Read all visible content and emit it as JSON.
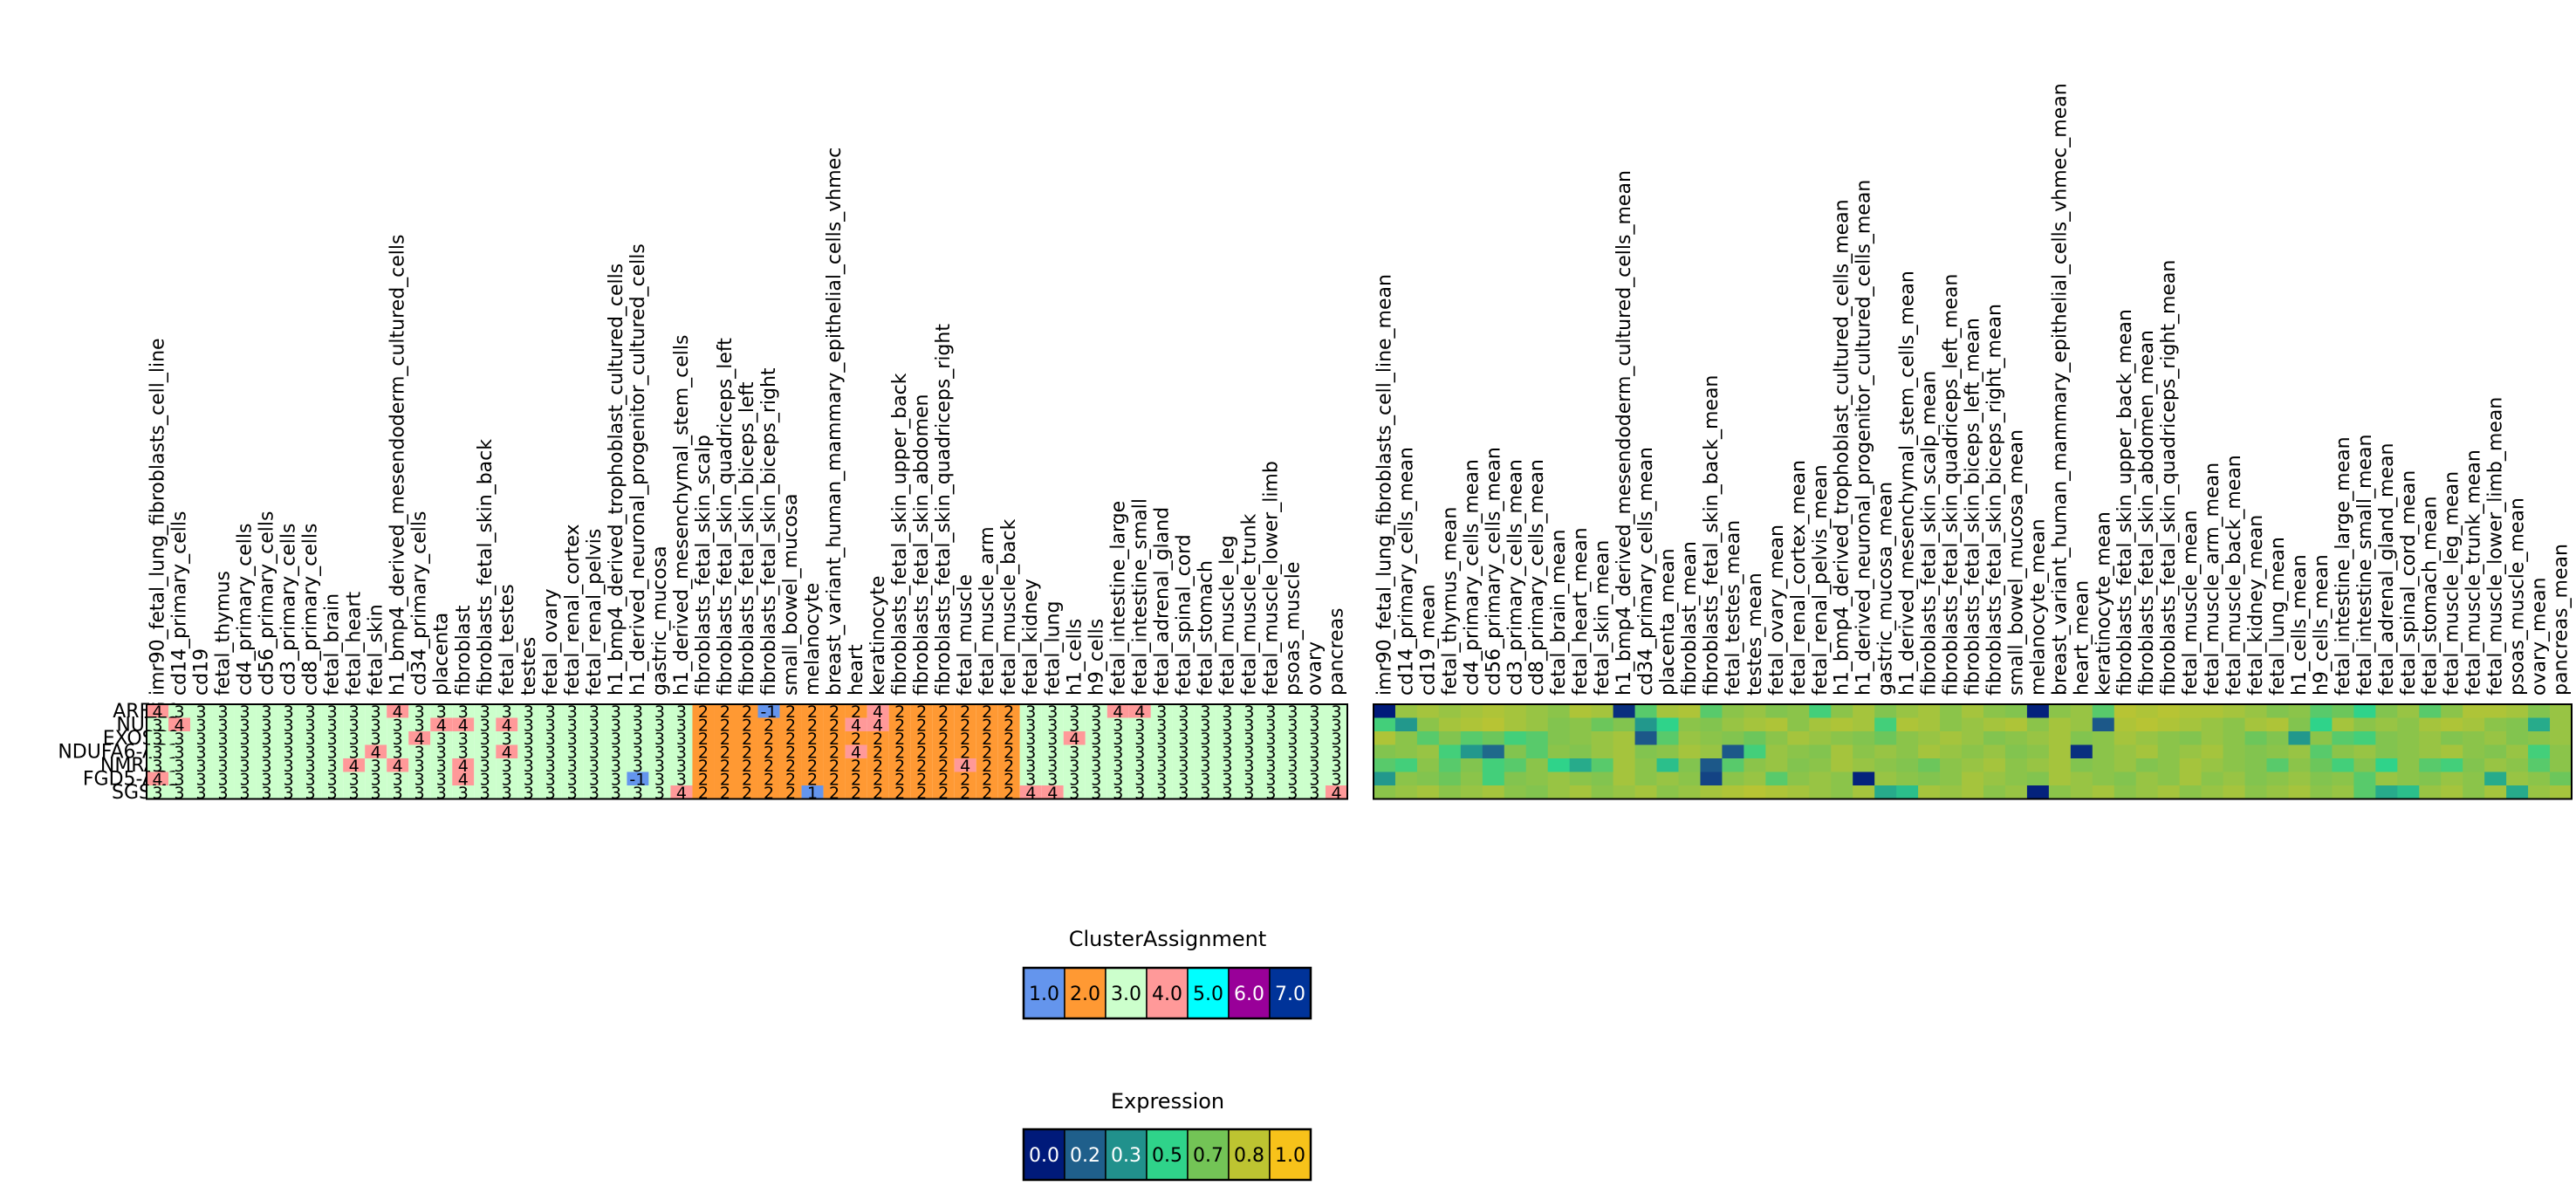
{
  "chart_data": [
    {
      "type": "heatmap",
      "name": "cluster-assignment-heatmap",
      "rows": [
        "ARFIP1",
        "NUTF2",
        "EXOSC9",
        "NDUFA6-AS1",
        "NMRAL1",
        "FGD5-AS1",
        "SGSM3"
      ],
      "columns": [
        "imr90_fetal_lung_fibroblasts_cell_line",
        "cd14_primary_cells",
        "cd19",
        "fetal_thymus",
        "cd4_primary_cells",
        "cd56_primary_cells",
        "cd3_primary_cells",
        "cd8_primary_cells",
        "fetal_brain",
        "fetal_heart",
        "fetal_skin",
        "h1_bmp4_derived_mesendoderm_cultured_cells",
        "cd34_primary_cells",
        "placenta",
        "fibroblast",
        "fibroblasts_fetal_skin_back",
        "fetal_testes",
        "testes",
        "fetal_ovary",
        "fetal_renal_cortex",
        "fetal_renal_pelvis",
        "h1_bmp4_derived_trophoblast_cultured_cells",
        "h1_derived_neuronal_progenitor_cultured_cells",
        "gastric_mucosa",
        "h1_derived_mesenchymal_stem_cells",
        "fibroblasts_fetal_skin_scalp",
        "fibroblasts_fetal_skin_quadriceps_left",
        "fibroblasts_fetal_skin_biceps_left",
        "fibroblasts_fetal_skin_biceps_right",
        "small_bowel_mucosa",
        "melanocyte",
        "breast_variant_human_mammary_epithelial_cells_vhmec",
        "heart",
        "keratinocyte",
        "fibroblasts_fetal_skin_upper_back",
        "fibroblasts_fetal_skin_abdomen",
        "fibroblasts_fetal_skin_quadriceps_right",
        "fetal_muscle",
        "fetal_muscle_arm",
        "fetal_muscle_back",
        "fetal_kidney",
        "fetal_lung",
        "h1_cells",
        "h9_cells",
        "fetal_intestine_large",
        "fetal_intestine_small",
        "fetal_adrenal_gland",
        "fetal_spinal_cord",
        "fetal_stomach",
        "fetal_muscle_leg",
        "fetal_muscle_trunk",
        "fetal_muscle_lower_limb",
        "psoas_muscle",
        "ovary",
        "pancreas"
      ],
      "values": [
        [
          4,
          3,
          3,
          3,
          3,
          3,
          3,
          3,
          3,
          3,
          3,
          4,
          3,
          3,
          3,
          3,
          3,
          3,
          3,
          3,
          3,
          3,
          3,
          3,
          3,
          2,
          2,
          2,
          -1,
          2,
          2,
          2,
          2,
          4,
          2,
          2,
          2,
          2,
          2,
          2,
          3,
          3,
          3,
          3,
          4,
          4,
          3,
          3,
          3,
          3,
          3,
          3,
          3,
          3,
          3
        ],
        [
          3,
          4,
          3,
          3,
          3,
          3,
          3,
          3,
          3,
          3,
          3,
          3,
          3,
          4,
          4,
          3,
          4,
          3,
          3,
          3,
          3,
          3,
          3,
          3,
          3,
          2,
          2,
          2,
          2,
          2,
          2,
          2,
          4,
          4,
          2,
          2,
          2,
          2,
          2,
          2,
          3,
          3,
          3,
          3,
          3,
          3,
          3,
          3,
          3,
          3,
          3,
          3,
          3,
          3,
          3
        ],
        [
          3,
          3,
          3,
          3,
          3,
          3,
          3,
          3,
          3,
          3,
          3,
          3,
          4,
          3,
          3,
          3,
          3,
          3,
          3,
          3,
          3,
          3,
          3,
          3,
          3,
          2,
          2,
          2,
          2,
          2,
          2,
          2,
          2,
          2,
          2,
          2,
          2,
          2,
          2,
          2,
          3,
          3,
          4,
          3,
          3,
          3,
          3,
          3,
          3,
          3,
          3,
          3,
          3,
          3,
          3
        ],
        [
          3,
          3,
          3,
          3,
          3,
          3,
          3,
          3,
          3,
          3,
          4,
          3,
          3,
          3,
          3,
          3,
          4,
          3,
          3,
          3,
          3,
          3,
          3,
          3,
          3,
          2,
          2,
          2,
          2,
          2,
          2,
          2,
          4,
          2,
          2,
          2,
          2,
          2,
          2,
          2,
          3,
          3,
          3,
          3,
          3,
          3,
          3,
          3,
          3,
          3,
          3,
          3,
          3,
          3,
          3
        ],
        [
          3,
          3,
          3,
          3,
          3,
          3,
          3,
          3,
          3,
          4,
          3,
          4,
          3,
          3,
          4,
          3,
          3,
          3,
          3,
          3,
          3,
          3,
          3,
          3,
          3,
          2,
          2,
          2,
          2,
          2,
          2,
          2,
          2,
          2,
          2,
          2,
          2,
          4,
          2,
          2,
          3,
          3,
          3,
          3,
          3,
          3,
          3,
          3,
          3,
          3,
          3,
          3,
          3,
          3,
          3
        ],
        [
          4,
          3,
          3,
          3,
          3,
          3,
          3,
          3,
          3,
          3,
          3,
          3,
          3,
          3,
          4,
          3,
          3,
          3,
          3,
          3,
          3,
          3,
          -1,
          3,
          3,
          2,
          2,
          2,
          2,
          2,
          2,
          2,
          2,
          2,
          2,
          2,
          2,
          2,
          2,
          2,
          3,
          3,
          3,
          3,
          3,
          3,
          3,
          3,
          3,
          3,
          3,
          3,
          3,
          3,
          3
        ],
        [
          3,
          3,
          3,
          3,
          3,
          3,
          3,
          3,
          3,
          3,
          3,
          3,
          3,
          3,
          3,
          3,
          3,
          3,
          3,
          3,
          3,
          3,
          3,
          3,
          4,
          2,
          2,
          2,
          2,
          2,
          1,
          2,
          2,
          2,
          2,
          2,
          2,
          2,
          2,
          2,
          4,
          4,
          3,
          3,
          3,
          3,
          3,
          3,
          3,
          3,
          3,
          3,
          3,
          3,
          4
        ]
      ]
    },
    {
      "type": "heatmap",
      "name": "expression-heatmap",
      "rows": [
        "ARFIP1",
        "NUTF2",
        "EXOSC9",
        "NDUFA6-AS1",
        "NMRAL1",
        "FGD5-AS1",
        "SGSM3"
      ],
      "columns": [
        "imr90_fetal_lung_fibroblasts_cell_line_mean",
        "cd14_primary_cells_mean",
        "cd19_mean",
        "fetal_thymus_mean",
        "cd4_primary_cells_mean",
        "cd56_primary_cells_mean",
        "cd3_primary_cells_mean",
        "cd8_primary_cells_mean",
        "fetal_brain_mean",
        "fetal_heart_mean",
        "fetal_skin_mean",
        "h1_bmp4_derived_mesendoderm_cultured_cells_mean",
        "cd34_primary_cells_mean",
        "placenta_mean",
        "fibroblast_mean",
        "fibroblasts_fetal_skin_back_mean",
        "fetal_testes_mean",
        "testes_mean",
        "fetal_ovary_mean",
        "fetal_renal_cortex_mean",
        "fetal_renal_pelvis_mean",
        "h1_bmp4_derived_trophoblast_cultured_cells_mean",
        "h1_derived_neuronal_progenitor_cultured_cells_mean",
        "gastric_mucosa_mean",
        "h1_derived_mesenchymal_stem_cells_mean",
        "fibroblasts_fetal_skin_scalp_mean",
        "fibroblasts_fetal_skin_quadriceps_left_mean",
        "fibroblasts_fetal_skin_biceps_left_mean",
        "fibroblasts_fetal_skin_biceps_right_mean",
        "small_bowel_mucosa_mean",
        "melanocyte_mean",
        "breast_variant_human_mammary_epithelial_cells_vhmec_mean",
        "heart_mean",
        "keratinocyte_mean",
        "fibroblasts_fetal_skin_upper_back_mean",
        "fibroblasts_fetal_skin_abdomen_mean",
        "fibroblasts_fetal_skin_quadriceps_right_mean",
        "fetal_muscle_mean",
        "fetal_muscle_arm_mean",
        "fetal_muscle_back_mean",
        "fetal_kidney_mean",
        "fetal_lung_mean",
        "h1_cells_mean",
        "h9_cells_mean",
        "fetal_intestine_large_mean",
        "fetal_intestine_small_mean",
        "fetal_adrenal_gland_mean",
        "fetal_spinal_cord_mean",
        "fetal_stomach_mean",
        "fetal_muscle_leg_mean",
        "fetal_muscle_trunk_mean",
        "fetal_muscle_lower_limb_mean",
        "psoas_muscle_mean",
        "ovary_mean",
        "pancreas_mean"
      ],
      "values": [
        [
          0.0,
          0.75,
          0.78,
          0.75,
          0.78,
          0.8,
          0.78,
          0.75,
          0.72,
          0.8,
          0.78,
          0.05,
          0.6,
          0.78,
          0.8,
          0.6,
          0.72,
          0.75,
          0.7,
          0.72,
          0.55,
          0.72,
          0.78,
          0.7,
          0.75,
          0.78,
          0.72,
          0.78,
          0.72,
          0.7,
          0.02,
          0.72,
          0.75,
          0.6,
          0.82,
          0.8,
          0.82,
          0.8,
          0.8,
          0.78,
          0.75,
          0.7,
          0.72,
          0.6,
          0.65,
          0.5,
          0.7,
          0.75,
          0.6,
          0.72,
          0.8,
          0.8,
          0.78,
          0.7,
          0.75
        ],
        [
          0.55,
          0.35,
          0.72,
          0.78,
          0.8,
          0.82,
          0.78,
          0.75,
          0.7,
          0.72,
          0.65,
          0.7,
          0.35,
          0.5,
          0.72,
          0.7,
          0.75,
          0.78,
          0.8,
          0.72,
          0.78,
          0.8,
          0.78,
          0.55,
          0.8,
          0.78,
          0.72,
          0.75,
          0.78,
          0.8,
          0.72,
          0.78,
          0.75,
          0.15,
          0.8,
          0.82,
          0.8,
          0.78,
          0.75,
          0.72,
          0.78,
          0.8,
          0.7,
          0.5,
          0.78,
          0.72,
          0.75,
          0.72,
          0.78,
          0.8,
          0.78,
          0.72,
          0.7,
          0.4,
          0.75
        ],
        [
          0.8,
          0.72,
          0.6,
          0.7,
          0.6,
          0.65,
          0.55,
          0.6,
          0.7,
          0.72,
          0.75,
          0.78,
          0.15,
          0.6,
          0.75,
          0.72,
          0.7,
          0.65,
          0.72,
          0.78,
          0.75,
          0.72,
          0.7,
          0.65,
          0.72,
          0.75,
          0.78,
          0.75,
          0.7,
          0.72,
          0.75,
          0.78,
          0.7,
          0.72,
          0.78,
          0.75,
          0.72,
          0.7,
          0.75,
          0.72,
          0.65,
          0.7,
          0.35,
          0.72,
          0.6,
          0.55,
          0.7,
          0.72,
          0.75,
          0.7,
          0.72,
          0.75,
          0.7,
          0.72,
          0.75
        ],
        [
          0.7,
          0.72,
          0.75,
          0.55,
          0.35,
          0.2,
          0.7,
          0.6,
          0.72,
          0.7,
          0.75,
          0.78,
          0.7,
          0.72,
          0.78,
          0.75,
          0.15,
          0.55,
          0.75,
          0.72,
          0.7,
          0.78,
          0.72,
          0.75,
          0.72,
          0.78,
          0.75,
          0.72,
          0.75,
          0.7,
          0.72,
          0.78,
          0.05,
          0.72,
          0.75,
          0.78,
          0.72,
          0.75,
          0.78,
          0.72,
          0.7,
          0.72,
          0.75,
          0.6,
          0.72,
          0.75,
          0.7,
          0.72,
          0.75,
          0.78,
          0.72,
          0.7,
          0.75,
          0.55,
          0.72
        ],
        [
          0.6,
          0.55,
          0.72,
          0.6,
          0.7,
          0.55,
          0.6,
          0.72,
          0.5,
          0.4,
          0.6,
          0.78,
          0.72,
          0.45,
          0.7,
          0.15,
          0.6,
          0.72,
          0.75,
          0.7,
          0.72,
          0.78,
          0.75,
          0.72,
          0.7,
          0.65,
          0.72,
          0.75,
          0.78,
          0.72,
          0.75,
          0.78,
          0.7,
          0.72,
          0.75,
          0.7,
          0.72,
          0.78,
          0.75,
          0.72,
          0.7,
          0.6,
          0.72,
          0.65,
          0.55,
          0.7,
          0.5,
          0.72,
          0.6,
          0.55,
          0.7,
          0.75,
          0.72,
          0.6,
          0.72
        ],
        [
          0.35,
          0.72,
          0.7,
          0.65,
          0.72,
          0.55,
          0.7,
          0.72,
          0.75,
          0.72,
          0.7,
          0.78,
          0.72,
          0.75,
          0.72,
          0.1,
          0.72,
          0.75,
          0.6,
          0.72,
          0.75,
          0.72,
          0.02,
          0.75,
          0.72,
          0.7,
          0.72,
          0.78,
          0.75,
          0.72,
          0.7,
          0.78,
          0.75,
          0.72,
          0.7,
          0.75,
          0.72,
          0.78,
          0.72,
          0.75,
          0.7,
          0.72,
          0.75,
          0.7,
          0.72,
          0.6,
          0.75,
          0.72,
          0.7,
          0.75,
          0.72,
          0.4,
          0.75,
          0.72,
          0.65
        ],
        [
          0.72,
          0.75,
          0.78,
          0.72,
          0.75,
          0.78,
          0.72,
          0.7,
          0.75,
          0.78,
          0.72,
          0.75,
          0.78,
          0.72,
          0.75,
          0.78,
          0.8,
          0.82,
          0.8,
          0.78,
          0.75,
          0.72,
          0.78,
          0.4,
          0.45,
          0.78,
          0.75,
          0.78,
          0.72,
          0.75,
          0.02,
          0.72,
          0.75,
          0.78,
          0.72,
          0.75,
          0.78,
          0.72,
          0.75,
          0.78,
          0.72,
          0.75,
          0.78,
          0.72,
          0.75,
          0.6,
          0.4,
          0.45,
          0.75,
          0.78,
          0.72,
          0.78,
          0.4,
          0.75,
          0.78
        ]
      ]
    }
  ],
  "legends": {
    "cluster": {
      "title": "ClusterAssignment",
      "labels": [
        "1.0",
        "2.0",
        "3.0",
        "4.0",
        "5.0",
        "6.0",
        "7.0"
      ],
      "colors": [
        "#6495ed",
        "#ff9933",
        "#ccffcc",
        "#ff9999",
        "#00ffff",
        "#990099",
        "#003399"
      ],
      "text_colors": [
        "#000000",
        "#000000",
        "#000000",
        "#000000",
        "#000000",
        "#ffffff",
        "#ffffff"
      ]
    },
    "expression": {
      "title": "Expression",
      "labels": [
        "0.0",
        "0.2",
        "0.3",
        "0.5",
        "0.7",
        "0.8",
        "1.0"
      ],
      "colors": [
        "#001a7a",
        "#1f5f8b",
        "#21918c",
        "#2fd38a",
        "#73c456",
        "#bdc431",
        "#f7c21a"
      ],
      "text_colors": [
        "#ffffff",
        "#ffffff",
        "#ffffff",
        "#000000",
        "#000000",
        "#000000",
        "#000000"
      ]
    }
  },
  "cluster_cell_colors": {
    "-1": "#6495ed",
    "1": "#6495ed",
    "2": "#ff9933",
    "3": "#ccffcc",
    "4": "#ff9999"
  },
  "expression_colormap": [
    "#001a7a",
    "#1f5f8b",
    "#21918c",
    "#2fd38a",
    "#73c456",
    "#bdc431",
    "#f7c21a"
  ]
}
